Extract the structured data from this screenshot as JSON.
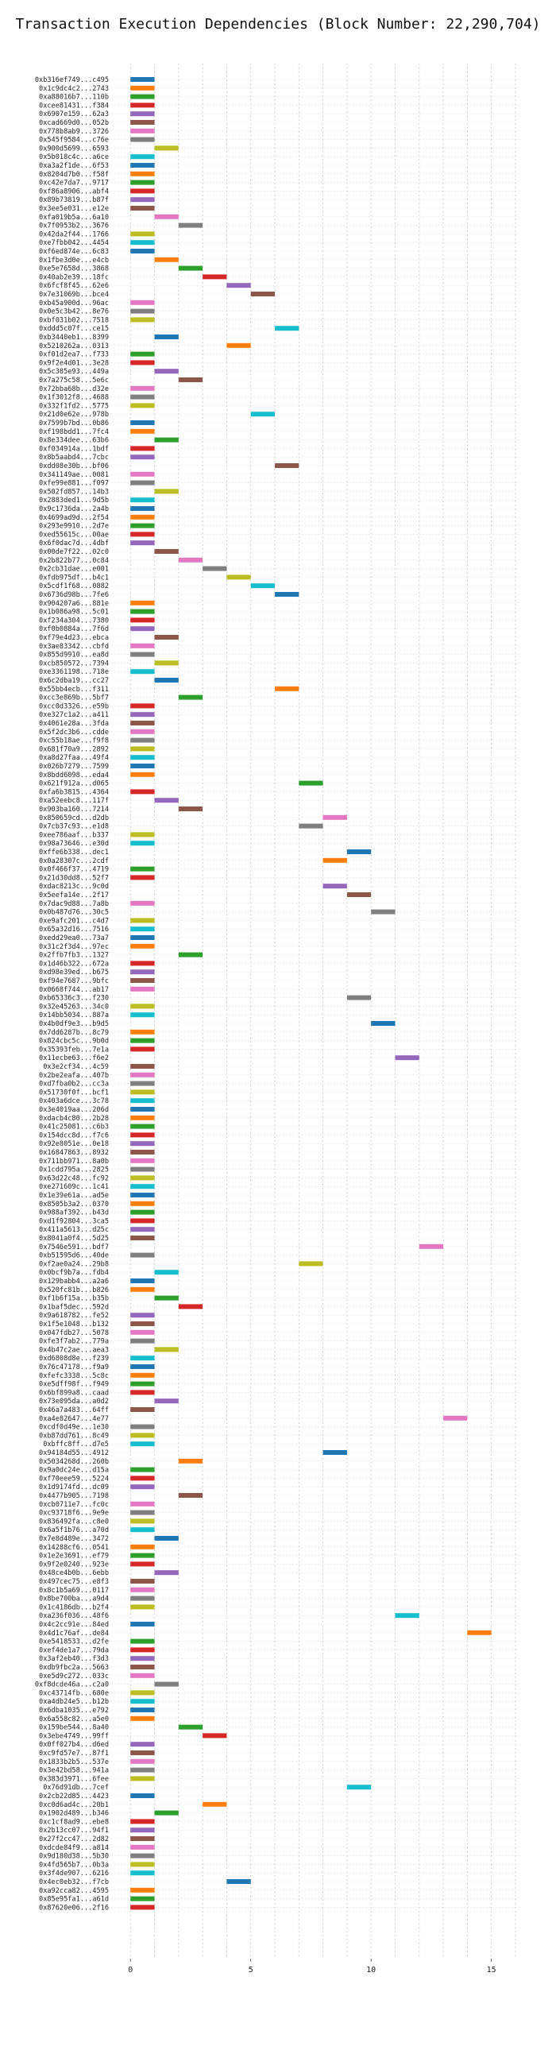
{
  "chart_data": {
    "type": "bar",
    "orientation": "horizontal-timeline",
    "title": "Transaction Execution Dependencies (Block Number: 22,290,704)",
    "xlabel": "",
    "ylabel": "",
    "xlim": [
      -0.8,
      16.2
    ],
    "xticks": [
      0,
      5,
      10,
      15
    ],
    "grid": true,
    "legend": "none",
    "bar_duration": 1,
    "palette": [
      "#1f77b4",
      "#ff7f0e",
      "#2ca02c",
      "#d62728",
      "#9467bd",
      "#8c564b",
      "#e377c2",
      "#7f7f7f",
      "#bcbd22",
      "#17becf"
    ],
    "transactions": [
      {
        "label": "0xb316ef749...c495",
        "start": 0
      },
      {
        "label": "0x1c9dc4c2...2743",
        "start": 0
      },
      {
        "label": "0xa88016b7...110b",
        "start": 0
      },
      {
        "label": "0xcee81431...f384",
        "start": 0
      },
      {
        "label": "0x6907e159...62a3",
        "start": 0
      },
      {
        "label": "0xcad669d0...052b",
        "start": 0
      },
      {
        "label": "0x778b8ab9...3726",
        "start": 0
      },
      {
        "label": "0x545f9584...c76e",
        "start": 0
      },
      {
        "label": "0x900d5699...6593",
        "start": 1
      },
      {
        "label": "0x5b018c4c...a6ce",
        "start": 0
      },
      {
        "label": "0xa3a2f1de...6f53",
        "start": 0
      },
      {
        "label": "0x8204d7b0...f58f",
        "start": 0
      },
      {
        "label": "0xc42e7da7...9717",
        "start": 0
      },
      {
        "label": "0xf86a8906...abf4",
        "start": 0
      },
      {
        "label": "0x89b73819...b87f",
        "start": 0
      },
      {
        "label": "0x3ee5e031...e12e",
        "start": 0
      },
      {
        "label": "0xfa019b5a...6a10",
        "start": 1
      },
      {
        "label": "0x7f0953b2...3676",
        "start": 2
      },
      {
        "label": "0x42da2f44...1766",
        "start": 0
      },
      {
        "label": "0xe7fbb042...4454",
        "start": 0
      },
      {
        "label": "0xf6ed874e...6c83",
        "start": 0
      },
      {
        "label": "0x1fbe3d0e...e4cb",
        "start": 1
      },
      {
        "label": "0xe5e7658d...3868",
        "start": 2
      },
      {
        "label": "0x40ab2e39...18fc",
        "start": 3
      },
      {
        "label": "0x6fcf8f45...62e6",
        "start": 4
      },
      {
        "label": "0x7e31069b...bce4",
        "start": 5
      },
      {
        "label": "0xb45a900d...96ac",
        "start": 0
      },
      {
        "label": "0x0e5c3b42...8e76",
        "start": 0
      },
      {
        "label": "0xbf031b02...7518",
        "start": 0
      },
      {
        "label": "0xddd5c07f...ce15",
        "start": 6
      },
      {
        "label": "0xb3440eb1...8399",
        "start": 1
      },
      {
        "label": "0x5210262a...0313",
        "start": 4
      },
      {
        "label": "0xf01d2ea7...f733",
        "start": 0
      },
      {
        "label": "0x9f2e4d01...3e28",
        "start": 0
      },
      {
        "label": "0x5c385e93...449a",
        "start": 1
      },
      {
        "label": "0x7a275c58...5e6c",
        "start": 2
      },
      {
        "label": "0x72bba68b...d32e",
        "start": 0
      },
      {
        "label": "0x1f3012f8...4688",
        "start": 0
      },
      {
        "label": "0x332f1fd2...5775",
        "start": 0
      },
      {
        "label": "0x21d0e62e...978b",
        "start": 5
      },
      {
        "label": "0x7599b7bd...0b86",
        "start": 0
      },
      {
        "label": "0xf198bdd1...7fc4",
        "start": 0
      },
      {
        "label": "0x8e334dee...63b6",
        "start": 1
      },
      {
        "label": "0xf034914a...1bdf",
        "start": 0
      },
      {
        "label": "0x8b5aabd4...7cbc",
        "start": 0
      },
      {
        "label": "0xdd08e30b...bf06",
        "start": 6
      },
      {
        "label": "0x341149ae...0081",
        "start": 0
      },
      {
        "label": "0xfe99e881...f097",
        "start": 0
      },
      {
        "label": "0x502fd857...14b3",
        "start": 1
      },
      {
        "label": "0x2883ded1...9d5b",
        "start": 0
      },
      {
        "label": "0x9c1736da...2a4b",
        "start": 0
      },
      {
        "label": "0x4699ad9d...2f54",
        "start": 0
      },
      {
        "label": "0x293e9910...2d7e",
        "start": 0
      },
      {
        "label": "0xed55615c...00ae",
        "start": 0
      },
      {
        "label": "0x6f0dac7d...4dbf",
        "start": 0
      },
      {
        "label": "0x00de7f22...02c0",
        "start": 1
      },
      {
        "label": "0x2b822b77...0c84",
        "start": 2
      },
      {
        "label": "0x2cb31dae...e001",
        "start": 3
      },
      {
        "label": "0xfdb975df...b4c1",
        "start": 4
      },
      {
        "label": "0x5cdf1f68...0882",
        "start": 5
      },
      {
        "label": "0x6736d98b...7fe6",
        "start": 6
      },
      {
        "label": "0x904207a6...881e",
        "start": 0
      },
      {
        "label": "0x1b086a98...5c01",
        "start": 0
      },
      {
        "label": "0xf234a304...7380",
        "start": 0
      },
      {
        "label": "0xf0b0884a...7f6d",
        "start": 0
      },
      {
        "label": "0xf79e4d23...ebca",
        "start": 1
      },
      {
        "label": "0x3ae83342...cbfd",
        "start": 0
      },
      {
        "label": "0x855d9910...ea8d",
        "start": 0
      },
      {
        "label": "0xcb850572...7394",
        "start": 1
      },
      {
        "label": "0xe3361198...718e",
        "start": 0
      },
      {
        "label": "0x6c2dba19...cc27",
        "start": 1
      },
      {
        "label": "0x55bb4ecb...f311",
        "start": 6
      },
      {
        "label": "0xcc3e869b...5bf7",
        "start": 2
      },
      {
        "label": "0xcc0d3326...e59b",
        "start": 0
      },
      {
        "label": "0xe327c1a2...a411",
        "start": 0
      },
      {
        "label": "0x4061e28a...3fda",
        "start": 0
      },
      {
        "label": "0x5f2dc3b6...cdde",
        "start": 0
      },
      {
        "label": "0xc55b18ae...f9f8",
        "start": 0
      },
      {
        "label": "0x681f70a9...2892",
        "start": 0
      },
      {
        "label": "0xa8d27faa...49f4",
        "start": 0
      },
      {
        "label": "0x026b7279...7599",
        "start": 0
      },
      {
        "label": "0x8bdd6098...eda4",
        "start": 0
      },
      {
        "label": "0x621f912a...d065",
        "start": 7
      },
      {
        "label": "0xfa6b3815...4364",
        "start": 0
      },
      {
        "label": "0xa52eebc8...117f",
        "start": 1
      },
      {
        "label": "0x903ba160...7214",
        "start": 2
      },
      {
        "label": "0x850659cd...d2db",
        "start": 8
      },
      {
        "label": "0x7cb37c93...e1d8",
        "start": 7
      },
      {
        "label": "0xee786aaf...b337",
        "start": 0
      },
      {
        "label": "0x98a73646...e30d",
        "start": 0
      },
      {
        "label": "0xffe6b338...dec1",
        "start": 9
      },
      {
        "label": "0x0a28307c...2cdf",
        "start": 8
      },
      {
        "label": "0x0f466f37...4719",
        "start": 0
      },
      {
        "label": "0x21d30dd8...52f7",
        "start": 0
      },
      {
        "label": "0xdac8213c...9c0d",
        "start": 8
      },
      {
        "label": "0x5eefa14e...2f17",
        "start": 9
      },
      {
        "label": "0x7dac9d88...7a8b",
        "start": 0
      },
      {
        "label": "0x0b487d76...30c5",
        "start": 10
      },
      {
        "label": "0xe9afc201...c4d7",
        "start": 0
      },
      {
        "label": "0x65a32d16...7516",
        "start": 0
      },
      {
        "label": "0xedd29ea0...73a7",
        "start": 0
      },
      {
        "label": "0x31c2f3d4...97ec",
        "start": 0
      },
      {
        "label": "0x2ffb7fb3...1327",
        "start": 2
      },
      {
        "label": "0x1d46b322...672a",
        "start": 0
      },
      {
        "label": "0xd98e39ed...b675",
        "start": 0
      },
      {
        "label": "0xf94e7687...9bfc",
        "start": 0
      },
      {
        "label": "0x0668f744...ab17",
        "start": 0
      },
      {
        "label": "0xb65336c3...f230",
        "start": 9
      },
      {
        "label": "0x32e45263...34c0",
        "start": 0
      },
      {
        "label": "0x14bb5034...887a",
        "start": 0
      },
      {
        "label": "0x4b0df9e3...b9d5",
        "start": 10
      },
      {
        "label": "0x7dd6287b...8c79",
        "start": 0
      },
      {
        "label": "0x824cbc5c...9b0d",
        "start": 0
      },
      {
        "label": "0x35393feb...7e1a",
        "start": 0
      },
      {
        "label": "0x11ecbe63...f6e2",
        "start": 11
      },
      {
        "label": "0x3e2cf34...4c59",
        "start": 0
      },
      {
        "label": "0x2be2eafa...407b",
        "start": 0
      },
      {
        "label": "0xd7fba0b2...cc3a",
        "start": 0
      },
      {
        "label": "0x51730f0f...bcf1",
        "start": 0
      },
      {
        "label": "0x403a6dce...3c78",
        "start": 0
      },
      {
        "label": "0x3e4019aa...206d",
        "start": 0
      },
      {
        "label": "0xdacb4c80...2b28",
        "start": 0
      },
      {
        "label": "0x41c25081...c6b3",
        "start": 0
      },
      {
        "label": "0x154dcc8d...f7c6",
        "start": 0
      },
      {
        "label": "0x92e8051e...0e18",
        "start": 0
      },
      {
        "label": "0x16847863...8932",
        "start": 0
      },
      {
        "label": "0x711bb971...8a0b",
        "start": 0
      },
      {
        "label": "0x1cdd795a...2825",
        "start": 0
      },
      {
        "label": "0x63d22c48...fc92",
        "start": 0
      },
      {
        "label": "0xe271609c...1c41",
        "start": 0
      },
      {
        "label": "0x1e39e61a...ad5e",
        "start": 0
      },
      {
        "label": "0x8505b3a2...0370",
        "start": 0
      },
      {
        "label": "0x988af392...b43d",
        "start": 0
      },
      {
        "label": "0xd1f92804...3ca5",
        "start": 0
      },
      {
        "label": "0x411a5613...d25c",
        "start": 0
      },
      {
        "label": "0x8041a0f4...5d25",
        "start": 0
      },
      {
        "label": "0x7546e591...bdf7",
        "start": 12
      },
      {
        "label": "0xb51595d6...40de",
        "start": 0
      },
      {
        "label": "0xf2ae0a24...29b8",
        "start": 7
      },
      {
        "label": "0x0bcf9b7a...fdb4",
        "start": 1
      },
      {
        "label": "0x129babb4...a2a6",
        "start": 0
      },
      {
        "label": "0x520fc81b...b826",
        "start": 0
      },
      {
        "label": "0xf1b6f15a...b35b",
        "start": 1
      },
      {
        "label": "0x1baf5dec...592d",
        "start": 2
      },
      {
        "label": "0x9a618782...fe52",
        "start": 0
      },
      {
        "label": "0x1f5e1048...b132",
        "start": 0
      },
      {
        "label": "0x047fdb27...5078",
        "start": 0
      },
      {
        "label": "0xfe3f7ab2...779a",
        "start": 0
      },
      {
        "label": "0x4b47c2ae...aea3",
        "start": 1
      },
      {
        "label": "0xd6808d8e...f239",
        "start": 0
      },
      {
        "label": "0x76c47178...f9a9",
        "start": 0
      },
      {
        "label": "0xfefc3338...5c8c",
        "start": 0
      },
      {
        "label": "0xe5dff98f...f949",
        "start": 0
      },
      {
        "label": "0x6bf899a8...caad",
        "start": 0
      },
      {
        "label": "0x73e095da...a0d2",
        "start": 1
      },
      {
        "label": "0x46a7a483...64ff",
        "start": 0
      },
      {
        "label": "0xa4e82647...4e77",
        "start": 13
      },
      {
        "label": "0xcdf0d49e...1e30",
        "start": 0
      },
      {
        "label": "0xb87dd761...8c49",
        "start": 0
      },
      {
        "label": "0xbffc8ff...d7e5",
        "start": 0
      },
      {
        "label": "0x94184d55...4912",
        "start": 8
      },
      {
        "label": "0x5034268d...260b",
        "start": 2
      },
      {
        "label": "0x9a0dc24e...d15a",
        "start": 0
      },
      {
        "label": "0xf70eee59...5224",
        "start": 0
      },
      {
        "label": "0x1d9174fd...dc09",
        "start": 0
      },
      {
        "label": "0x4477b905...7198",
        "start": 2
      },
      {
        "label": "0xcb0711e7...fc0c",
        "start": 0
      },
      {
        "label": "0xc93718f6...9e9e",
        "start": 0
      },
      {
        "label": "0x836492fa...c8e0",
        "start": 0
      },
      {
        "label": "0x6a5f1b76...a70d",
        "start": 0
      },
      {
        "label": "0x7e8d489e...3472",
        "start": 1
      },
      {
        "label": "0x14288cf6...0541",
        "start": 0
      },
      {
        "label": "0x1e2e3691...ef79",
        "start": 0
      },
      {
        "label": "0x9f2e0240...923e",
        "start": 0
      },
      {
        "label": "0x48ce4b0b...6ebb",
        "start": 1
      },
      {
        "label": "0x497cec75...e8f3",
        "start": 0
      },
      {
        "label": "0x8c1b5a69...0117",
        "start": 0
      },
      {
        "label": "0x8be700ba...a9d4",
        "start": 0
      },
      {
        "label": "0x1c4186db...b2f4",
        "start": 0
      },
      {
        "label": "0xa236f036...48f6",
        "start": 11
      },
      {
        "label": "0x4c2cc91e...84ed",
        "start": 0
      },
      {
        "label": "0x4d1c76af...de84",
        "start": 14
      },
      {
        "label": "0xe5418533...d2fe",
        "start": 0
      },
      {
        "label": "0xef4de1a7...79da",
        "start": 0
      },
      {
        "label": "0x3af2eb40...f3d3",
        "start": 0
      },
      {
        "label": "0xdb9fbc2a...5663",
        "start": 0
      },
      {
        "label": "0xe5d9c272...033c",
        "start": 0
      },
      {
        "label": "0xf8dcde46a...c2a0",
        "start": 1
      },
      {
        "label": "0xc43714fb...680e",
        "start": 0
      },
      {
        "label": "0xa4db24e5...b12b",
        "start": 0
      },
      {
        "label": "0x6dba1035...e792",
        "start": 0
      },
      {
        "label": "0x6a558c82...a5e0",
        "start": 0
      },
      {
        "label": "0x159be544...8a40",
        "start": 2
      },
      {
        "label": "0x3ebe4749...99ff",
        "start": 3
      },
      {
        "label": "0x0ff027b4...d6ed",
        "start": 0
      },
      {
        "label": "0xc9fd57e7...87f1",
        "start": 0
      },
      {
        "label": "0x1833b2b5...537e",
        "start": 0
      },
      {
        "label": "0x3e42bd58...941a",
        "start": 0
      },
      {
        "label": "0x383d3971...6fee",
        "start": 0
      },
      {
        "label": "0x76d91db...7cef",
        "start": 9
      },
      {
        "label": "0x2cb22d85...4423",
        "start": 0
      },
      {
        "label": "0xc0d6ad4c...20b1",
        "start": 3
      },
      {
        "label": "0x1902d489...b346",
        "start": 1
      },
      {
        "label": "0xc1cf8ad9...ebe8",
        "start": 0
      },
      {
        "label": "0x2b13cc07...94f1",
        "start": 0
      },
      {
        "label": "0x27f2cc47...2d82",
        "start": 0
      },
      {
        "label": "0xdcde84f9...a814",
        "start": 0
      },
      {
        "label": "0x9d180d38...5b30",
        "start": 0
      },
      {
        "label": "0x4fd565b7...0b3a",
        "start": 0
      },
      {
        "label": "0x3f4de907...6216",
        "start": 0
      },
      {
        "label": "0x4ec0eb32...f7cb",
        "start": 4
      },
      {
        "label": "0xa92cca82...4595",
        "start": 0
      },
      {
        "label": "0x85e95fa1...a61d",
        "start": 0
      },
      {
        "label": "0x87620e06...2f16",
        "start": 0
      }
    ]
  }
}
